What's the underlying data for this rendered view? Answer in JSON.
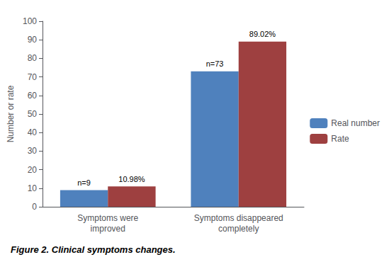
{
  "chart_data": {
    "type": "bar",
    "caption": "Figure 2. Clinical symptoms changes.",
    "categories": [
      "Symptoms were\nimproved",
      "Symptoms disappeared\ncompletely"
    ],
    "series": [
      {
        "name": "Real number",
        "color": "#4F81BD",
        "values": [
          9,
          73
        ],
        "value_labels": [
          "n=9",
          "n=73"
        ]
      },
      {
        "name": "Rate",
        "color": "#9E4040",
        "values": [
          10.98,
          89.02
        ],
        "value_labels": [
          "10.98%",
          "89.02%"
        ]
      }
    ],
    "ylabel": "Number or rate",
    "ylim": [
      0,
      100
    ],
    "yticks": [
      0,
      10,
      20,
      30,
      40,
      50,
      60,
      70,
      80,
      90,
      100
    ],
    "grid": false,
    "legend": "right",
    "data_labels": true
  }
}
